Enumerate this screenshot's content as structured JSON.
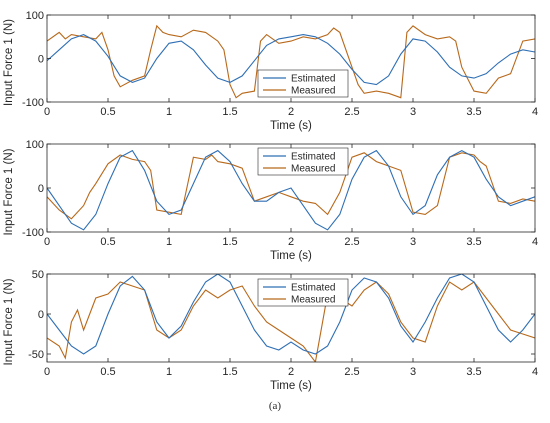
{
  "caption": "(a)",
  "colors": {
    "estimated": "#2f6fb5",
    "measured": "#b8691b",
    "axes": "#262626"
  },
  "chart_data": [
    {
      "type": "line",
      "xlabel": "Time (s)",
      "ylabel": "Input Force 1 (N)",
      "xlim": [
        0,
        4
      ],
      "ylim": [
        -100,
        100
      ],
      "xticks": [
        0,
        0.5,
        1,
        1.5,
        2,
        2.5,
        3,
        3.5,
        4
      ],
      "yticks": [
        -100,
        0,
        100
      ],
      "grid": false,
      "legend_position": "lower-right",
      "series": [
        {
          "name": "Estimated",
          "color": "#2f6fb5",
          "x": [
            0,
            0.1,
            0.2,
            0.3,
            0.4,
            0.5,
            0.6,
            0.7,
            0.8,
            0.9,
            1.0,
            1.1,
            1.2,
            1.3,
            1.4,
            1.5,
            1.6,
            1.7,
            1.8,
            1.9,
            2.0,
            2.1,
            2.2,
            2.3,
            2.4,
            2.5,
            2.6,
            2.7,
            2.8,
            2.9,
            3.0,
            3.1,
            3.2,
            3.3,
            3.4,
            3.5,
            3.6,
            3.7,
            3.8,
            3.9,
            4.0
          ],
          "y": [
            -5,
            20,
            45,
            55,
            40,
            5,
            -40,
            -55,
            -45,
            0,
            35,
            40,
            20,
            -15,
            -45,
            -55,
            -40,
            -5,
            30,
            45,
            50,
            55,
            50,
            35,
            10,
            -25,
            -55,
            -60,
            -40,
            10,
            45,
            40,
            15,
            -20,
            -40,
            -45,
            -35,
            -10,
            10,
            20,
            15
          ]
        },
        {
          "name": "Measured",
          "color": "#b8691b",
          "x": [
            0,
            0.1,
            0.15,
            0.2,
            0.3,
            0.4,
            0.45,
            0.5,
            0.55,
            0.6,
            0.7,
            0.8,
            0.85,
            0.9,
            0.95,
            1.0,
            1.1,
            1.2,
            1.3,
            1.4,
            1.45,
            1.5,
            1.55,
            1.6,
            1.7,
            1.75,
            1.8,
            1.9,
            2.0,
            2.1,
            2.2,
            2.3,
            2.35,
            2.4,
            2.5,
            2.55,
            2.6,
            2.7,
            2.8,
            2.9,
            2.95,
            3.0,
            3.1,
            3.2,
            3.3,
            3.35,
            3.4,
            3.5,
            3.6,
            3.7,
            3.8,
            3.9,
            4.0
          ],
          "y": [
            40,
            60,
            45,
            55,
            50,
            45,
            60,
            20,
            -40,
            -65,
            -50,
            -40,
            20,
            75,
            60,
            55,
            50,
            65,
            60,
            40,
            20,
            -60,
            -90,
            -80,
            -75,
            40,
            55,
            35,
            40,
            50,
            45,
            55,
            70,
            60,
            -20,
            -60,
            -80,
            -75,
            -80,
            -90,
            60,
            75,
            55,
            45,
            50,
            40,
            -20,
            -75,
            -80,
            -45,
            -35,
            40,
            45
          ]
        }
      ]
    },
    {
      "type": "line",
      "xlabel": "Time (s)",
      "ylabel": "Input Force 1 (N)",
      "xlim": [
        0,
        4
      ],
      "ylim": [
        -100,
        100
      ],
      "xticks": [
        0,
        0.5,
        1,
        1.5,
        2,
        2.5,
        3,
        3.5,
        4
      ],
      "yticks": [
        -100,
        0,
        100
      ],
      "grid": false,
      "legend_position": "top-right",
      "series": [
        {
          "name": "Estimated",
          "color": "#2f6fb5",
          "x": [
            0,
            0.1,
            0.2,
            0.3,
            0.4,
            0.5,
            0.6,
            0.7,
            0.8,
            0.9,
            1.0,
            1.1,
            1.2,
            1.3,
            1.4,
            1.5,
            1.6,
            1.7,
            1.8,
            1.9,
            2.0,
            2.1,
            2.2,
            2.3,
            2.4,
            2.5,
            2.6,
            2.7,
            2.8,
            2.9,
            3.0,
            3.1,
            3.2,
            3.3,
            3.4,
            3.5,
            3.6,
            3.7,
            3.8,
            3.9,
            4.0
          ],
          "y": [
            0,
            -40,
            -80,
            -95,
            -60,
            10,
            70,
            85,
            40,
            -30,
            -60,
            -50,
            10,
            70,
            85,
            60,
            10,
            -30,
            -30,
            -10,
            0,
            -40,
            -80,
            -95,
            -60,
            20,
            70,
            85,
            50,
            -20,
            -60,
            -40,
            30,
            70,
            85,
            70,
            20,
            -20,
            -40,
            -30,
            -20
          ]
        },
        {
          "name": "Measured",
          "color": "#b8691b",
          "x": [
            0,
            0.1,
            0.2,
            0.3,
            0.35,
            0.4,
            0.5,
            0.6,
            0.7,
            0.8,
            0.85,
            0.9,
            1.0,
            1.1,
            1.2,
            1.3,
            1.35,
            1.4,
            1.5,
            1.6,
            1.7,
            1.8,
            1.9,
            2.0,
            2.1,
            2.2,
            2.3,
            2.4,
            2.5,
            2.6,
            2.7,
            2.8,
            2.9,
            3.0,
            3.1,
            3.2,
            3.3,
            3.4,
            3.5,
            3.55,
            3.6,
            3.7,
            3.8,
            3.9,
            4.0
          ],
          "y": [
            -20,
            -50,
            -70,
            -40,
            -10,
            10,
            55,
            75,
            65,
            60,
            40,
            -50,
            -55,
            -60,
            70,
            65,
            75,
            60,
            55,
            45,
            -30,
            -20,
            -10,
            -20,
            -30,
            -35,
            -60,
            -10,
            70,
            80,
            60,
            50,
            40,
            -55,
            -60,
            -40,
            70,
            80,
            75,
            60,
            50,
            -30,
            -35,
            -25,
            -30
          ]
        }
      ]
    },
    {
      "type": "line",
      "xlabel": "Time (s)",
      "ylabel": "Input Force 1 (N)",
      "xlim": [
        0,
        4
      ],
      "ylim": [
        -60,
        50
      ],
      "xticks": [
        0,
        0.5,
        1,
        1.5,
        2,
        2.5,
        3,
        3.5,
        4
      ],
      "yticks": [
        -50,
        0,
        50
      ],
      "grid": false,
      "legend_position": "top-right",
      "series": [
        {
          "name": "Estimated",
          "color": "#2f6fb5",
          "x": [
            0,
            0.1,
            0.2,
            0.3,
            0.4,
            0.5,
            0.6,
            0.7,
            0.8,
            0.9,
            1.0,
            1.1,
            1.2,
            1.3,
            1.4,
            1.5,
            1.6,
            1.7,
            1.8,
            1.9,
            2.0,
            2.1,
            2.2,
            2.3,
            2.4,
            2.5,
            2.6,
            2.7,
            2.8,
            2.9,
            3.0,
            3.1,
            3.2,
            3.3,
            3.4,
            3.5,
            3.6,
            3.7,
            3.8,
            3.9,
            4.0
          ],
          "y": [
            0,
            -20,
            -40,
            -50,
            -40,
            0,
            35,
            47,
            30,
            -10,
            -30,
            -15,
            15,
            40,
            50,
            40,
            10,
            -20,
            -40,
            -45,
            -35,
            -45,
            -50,
            -40,
            -10,
            30,
            45,
            40,
            20,
            -15,
            -35,
            -10,
            20,
            45,
            50,
            40,
            10,
            -20,
            -35,
            -20,
            0
          ]
        },
        {
          "name": "Measured",
          "color": "#b8691b",
          "x": [
            0,
            0.1,
            0.15,
            0.2,
            0.25,
            0.3,
            0.4,
            0.5,
            0.6,
            0.7,
            0.8,
            0.9,
            1.0,
            1.1,
            1.2,
            1.3,
            1.4,
            1.5,
            1.6,
            1.7,
            1.8,
            1.9,
            2.0,
            2.1,
            2.2,
            2.3,
            2.4,
            2.5,
            2.6,
            2.7,
            2.8,
            2.9,
            3.0,
            3.1,
            3.2,
            3.3,
            3.4,
            3.5,
            3.6,
            3.7,
            3.8,
            3.9,
            4.0
          ],
          "y": [
            -30,
            -40,
            -55,
            -10,
            5,
            -20,
            20,
            25,
            40,
            35,
            30,
            -20,
            -30,
            -20,
            10,
            30,
            20,
            30,
            35,
            10,
            -10,
            -20,
            -30,
            -40,
            -60,
            25,
            20,
            10,
            30,
            40,
            25,
            -10,
            -30,
            -35,
            10,
            40,
            30,
            40,
            20,
            0,
            -20,
            -25,
            -30
          ]
        }
      ]
    }
  ]
}
